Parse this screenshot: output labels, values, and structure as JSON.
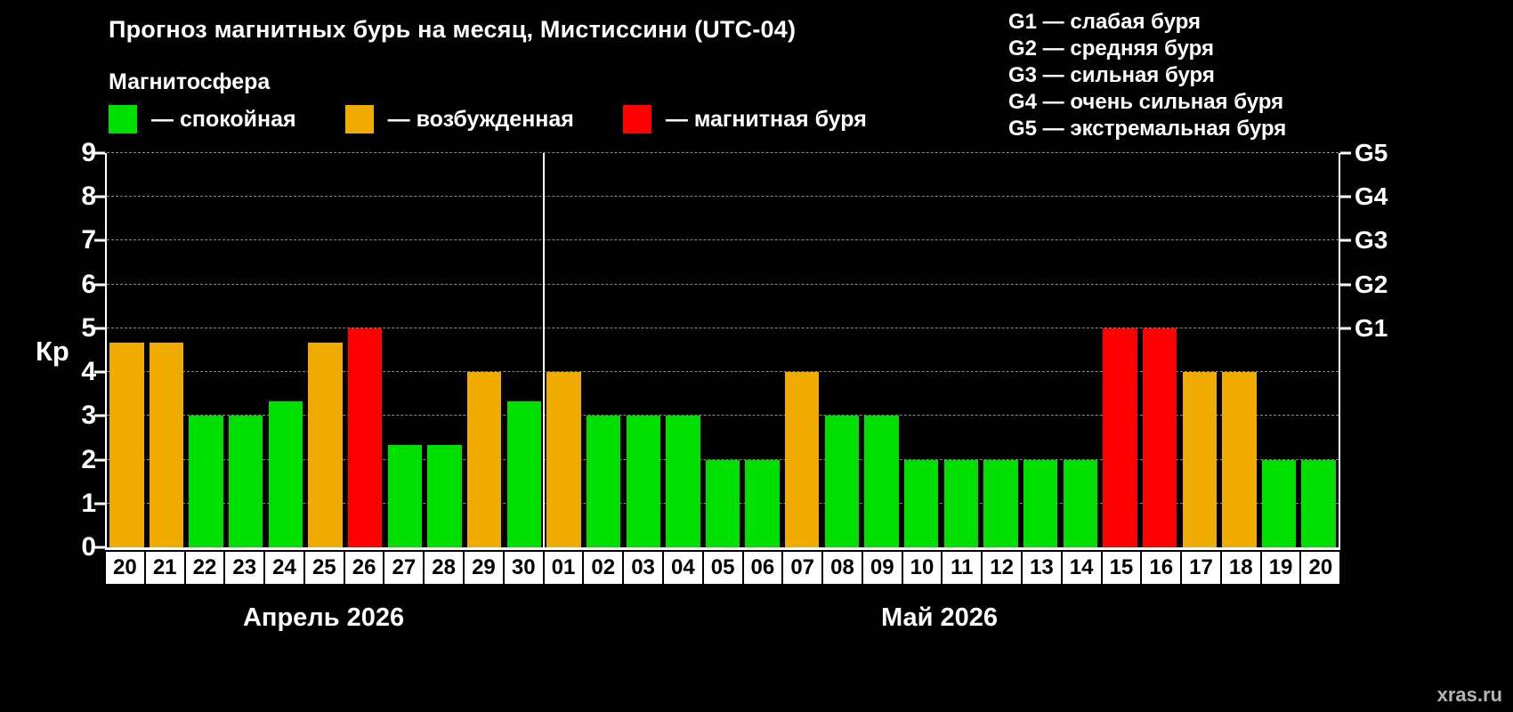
{
  "title": "Прогноз магнитных бурь на месяц, Мистиссини (UTC-04)",
  "subtitle": "Магнитосфера",
  "legend": {
    "items": [
      {
        "status": "quiet",
        "label": "— спокойная"
      },
      {
        "status": "excited",
        "label": "— возбужденная"
      },
      {
        "status": "storm",
        "label": "— магнитная буря"
      }
    ]
  },
  "g_legend": {
    "lines": [
      "G1 — слабая буря",
      "G2 — средняя буря",
      "G3 — сильная буря",
      "G4 — очень сильная буря",
      "G5 — экстремальная буря"
    ]
  },
  "colors": {
    "quiet": "#00e000",
    "excited": "#f0ab00",
    "storm": "#ff0000"
  },
  "watermark": "xras.ru",
  "chart_data": {
    "type": "bar",
    "title": "Прогноз магнитных бурь на месяц, Мистиссини (UTC-04)",
    "ylabel": "Кр",
    "ylim": [
      0,
      9
    ],
    "yticks": [
      0,
      1,
      2,
      3,
      4,
      5,
      6,
      7,
      8,
      9
    ],
    "right_ticks": [
      {
        "label": "G1",
        "value": 5
      },
      {
        "label": "G2",
        "value": 6
      },
      {
        "label": "G3",
        "value": 7
      },
      {
        "label": "G4",
        "value": 8
      },
      {
        "label": "G5",
        "value": 9
      }
    ],
    "grid": "dashed-horizontal",
    "legend_position": "top",
    "categories": [
      "20",
      "21",
      "22",
      "23",
      "24",
      "25",
      "26",
      "27",
      "28",
      "29",
      "30",
      "01",
      "02",
      "03",
      "04",
      "05",
      "06",
      "07",
      "08",
      "09",
      "10",
      "11",
      "12",
      "13",
      "14",
      "15",
      "16",
      "17",
      "18",
      "19",
      "20"
    ],
    "values": [
      4.67,
      4.67,
      3,
      3,
      3.33,
      4.67,
      5,
      2.33,
      2.33,
      4,
      3.33,
      4,
      3,
      3,
      3,
      2,
      2,
      4,
      3,
      3,
      2,
      2,
      2,
      2,
      2,
      5,
      5,
      4,
      4,
      2,
      2
    ],
    "statuses": [
      "excited",
      "excited",
      "quiet",
      "quiet",
      "quiet",
      "excited",
      "storm",
      "quiet",
      "quiet",
      "excited",
      "quiet",
      "excited",
      "quiet",
      "quiet",
      "quiet",
      "quiet",
      "quiet",
      "excited",
      "quiet",
      "quiet",
      "quiet",
      "quiet",
      "quiet",
      "quiet",
      "quiet",
      "storm",
      "storm",
      "excited",
      "excited",
      "quiet",
      "quiet"
    ],
    "separator_index": 11,
    "months": [
      {
        "label": "Апрель 2026",
        "slots": 11
      },
      {
        "label": "Май 2026",
        "slots": 20
      }
    ]
  }
}
